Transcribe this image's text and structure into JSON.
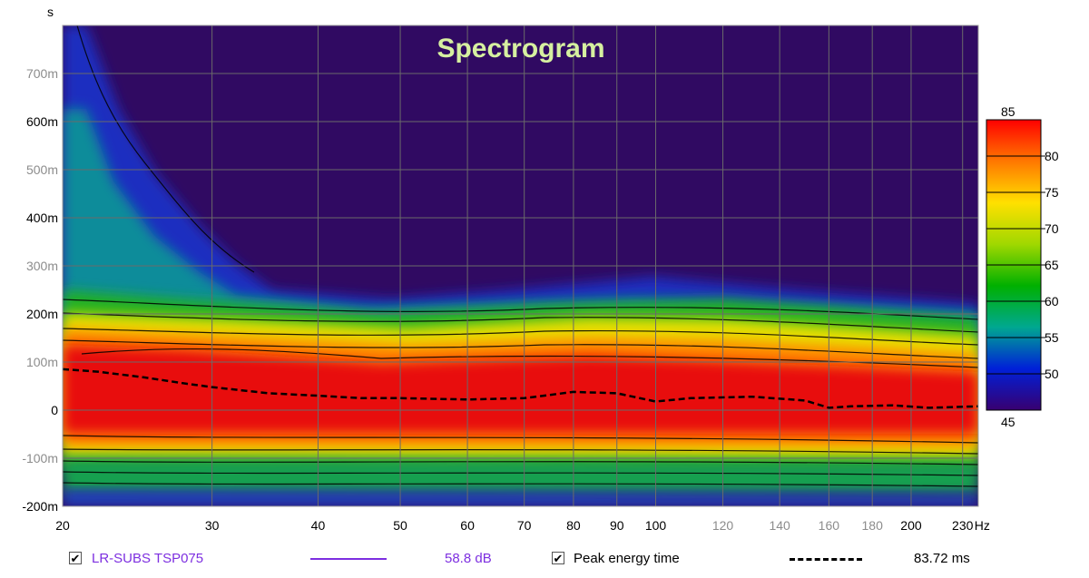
{
  "chart_data": {
    "type": "heatmap",
    "title": "Spectrogram",
    "y_unit_label": "s",
    "x_unit_label": "Hz",
    "x_scale": "log",
    "xlim": [
      20,
      240
    ],
    "ylim": [
      -0.2,
      0.8
    ],
    "x_ticks": [
      {
        "value": 20,
        "label": "20",
        "minor": false
      },
      {
        "value": 30,
        "label": "30",
        "minor": false
      },
      {
        "value": 40,
        "label": "40",
        "minor": false
      },
      {
        "value": 50,
        "label": "50",
        "minor": false
      },
      {
        "value": 60,
        "label": "60",
        "minor": false
      },
      {
        "value": 70,
        "label": "70",
        "minor": false
      },
      {
        "value": 80,
        "label": "80",
        "minor": false
      },
      {
        "value": 90,
        "label": "90",
        "minor": false
      },
      {
        "value": 100,
        "label": "100",
        "minor": false
      },
      {
        "value": 120,
        "label": "120",
        "minor": true
      },
      {
        "value": 140,
        "label": "140",
        "minor": true
      },
      {
        "value": 160,
        "label": "160",
        "minor": true
      },
      {
        "value": 180,
        "label": "180",
        "minor": true
      },
      {
        "value": 200,
        "label": "200",
        "minor": false
      },
      {
        "value": 230,
        "label": "230",
        "minor": false
      }
    ],
    "y_ticks": [
      {
        "value": 0.7,
        "label": "700m",
        "minor": true
      },
      {
        "value": 0.6,
        "label": "600m",
        "minor": false
      },
      {
        "value": 0.5,
        "label": "500m",
        "minor": true
      },
      {
        "value": 0.4,
        "label": "400m",
        "minor": false
      },
      {
        "value": 0.3,
        "label": "300m",
        "minor": true
      },
      {
        "value": 0.2,
        "label": "200m",
        "minor": false
      },
      {
        "value": 0.1,
        "label": "100m",
        "minor": true
      },
      {
        "value": 0.0,
        "label": "0",
        "minor": false
      },
      {
        "value": -0.1,
        "label": "-100m",
        "minor": true
      },
      {
        "value": -0.2,
        "label": "-200m",
        "minor": false
      }
    ],
    "colorbar": {
      "min": 45,
      "max": 85,
      "ticks": [
        80,
        75,
        70,
        65,
        60,
        55,
        50
      ],
      "top_label": "85",
      "bottom_label": "45",
      "stops": [
        "#ff0000",
        "#ff7800",
        "#ffe000",
        "#a0d800",
        "#00b000",
        "#00a890",
        "#0020d8",
        "#380070"
      ]
    },
    "peak_energy_time_curve": {
      "x": [
        20,
        22,
        25,
        28,
        30,
        35,
        40,
        45,
        50,
        60,
        70,
        80,
        90,
        100,
        110,
        130,
        150,
        160,
        170,
        190,
        210,
        240
      ],
      "y": [
        0.085,
        0.08,
        0.068,
        0.055,
        0.048,
        0.035,
        0.03,
        0.025,
        0.025,
        0.022,
        0.025,
        0.038,
        0.035,
        0.018,
        0.025,
        0.028,
        0.02,
        0.005,
        0.008,
        0.01,
        0.005,
        0.008
      ]
    }
  },
  "legend": {
    "series_label": "LR-SUBS TSP075",
    "series_value": "58.8 dB",
    "series_color": "#7d2fe0",
    "peak_label": "Peak energy time",
    "peak_value": "83.72 ms"
  }
}
